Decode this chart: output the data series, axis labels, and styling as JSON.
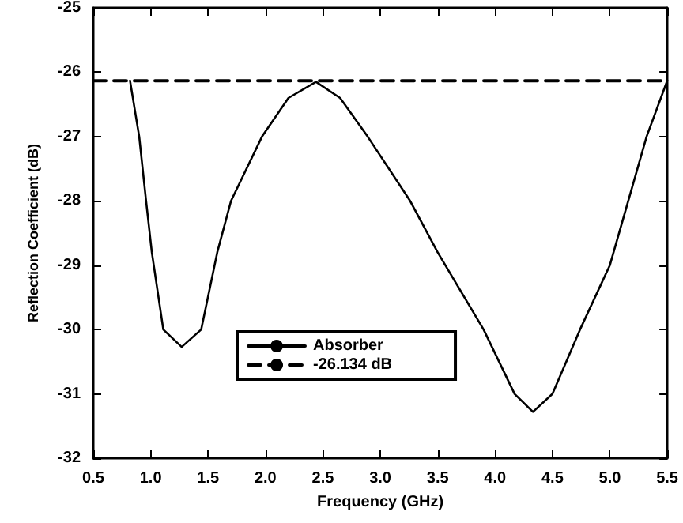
{
  "chart_data": {
    "type": "line",
    "xlabel": "Frequency (GHz)",
    "ylabel": "Reflection Coefficient (dB)",
    "xlim": [
      0.5,
      5.5
    ],
    "xticks": [
      {
        "value": 0.5,
        "label": "0.5"
      },
      {
        "value": 1,
        "label": "1.0"
      },
      {
        "value": 1.5,
        "label": "1.5"
      },
      {
        "value": 2,
        "label": "2.0"
      },
      {
        "value": 2.5,
        "label": "2.5"
      },
      {
        "value": 3,
        "label": "3.0"
      },
      {
        "value": 3.5,
        "label": "3.5"
      },
      {
        "value": 4,
        "label": "4.0"
      },
      {
        "value": 4.5,
        "label": "4.5"
      },
      {
        "value": 5,
        "label": "5.0"
      },
      {
        "value": 5.5,
        "label": "5.5"
      }
    ],
    "ylim": [
      -32,
      -25
    ],
    "yticks": [
      -32,
      -31,
      -30,
      -29,
      -28,
      -27,
      -26,
      -25
    ],
    "grid": false,
    "legend": "bottom",
    "marker": "none",
    "series": [
      {
        "name": "Absorber",
        "color": "#000000",
        "line_style": "solid",
        "x": [
          0.82,
          0.9,
          0.96,
          1.01,
          1.11,
          1.27,
          1.44,
          1.58,
          1.7,
          1.97,
          2.2,
          2.44,
          2.65,
          2.89,
          3.26,
          3.5,
          3.9,
          4.17,
          4.33,
          4.5,
          4.74,
          5.0,
          5.16,
          5.32,
          5.5
        ],
        "values": [
          -26.13,
          -27,
          -28,
          -28.8,
          -30,
          -30.27,
          -30,
          -28.8,
          -28,
          -27,
          -26.4,
          -26.15,
          -26.4,
          -27,
          -28,
          -28.8,
          -30,
          -31,
          -31.28,
          -31,
          -30,
          -29,
          -28,
          -27,
          -26.13
        ]
      },
      {
        "name": "-26.134 dB",
        "color": "#000000",
        "line_style": "dashed",
        "x": [
          0.5,
          5.5
        ],
        "values": [
          -26.134,
          -26.134
        ]
      }
    ]
  }
}
